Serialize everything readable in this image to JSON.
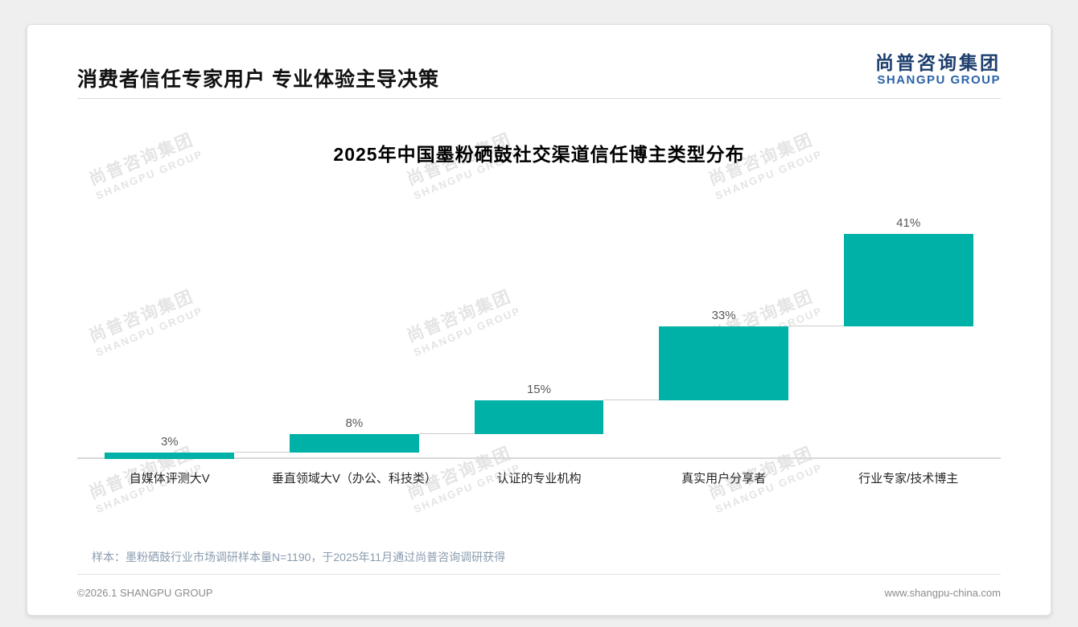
{
  "page": {
    "title": "消费者信任专家用户 专业体验主导决策",
    "sample_note": "样本：墨粉硒鼓行业市场调研样本量N=1190，于2025年11月通过尚普咨询调研获得",
    "footer_left": "©2026.1 SHANGPU GROUP",
    "footer_right": "www.shangpu-china.com"
  },
  "brand": {
    "logo_cn": "尚普咨询集团",
    "logo_en": "SHANGPU GROUP",
    "watermark_cn": "尚普咨询集团",
    "watermark_en": "SHANGPU GROUP"
  },
  "chart_data": {
    "type": "bar",
    "subtype": "ascending-waterfall",
    "title": "2025年中国墨粉硒鼓社交渠道信任博主类型分布",
    "categories": [
      "自媒体评测大V",
      "垂直领域大V（办公、科技类）",
      "认证的专业机构",
      "真实用户分享者",
      "行业专家/技术博主"
    ],
    "values": [
      3,
      8,
      15,
      33,
      41
    ],
    "value_labels": [
      "3%",
      "8%",
      "15%",
      "33%",
      "41%"
    ],
    "cumulative": [
      3,
      11,
      26,
      59,
      100
    ],
    "bar_color": "#00b1a7",
    "ylim": [
      0,
      100
    ],
    "xlabel": "",
    "ylabel": "",
    "grid": false,
    "legend": false,
    "notes": "each bar floats starting at the cumulative sum of previous bars; thin gray connector from each bar top to the base of the next bar"
  }
}
